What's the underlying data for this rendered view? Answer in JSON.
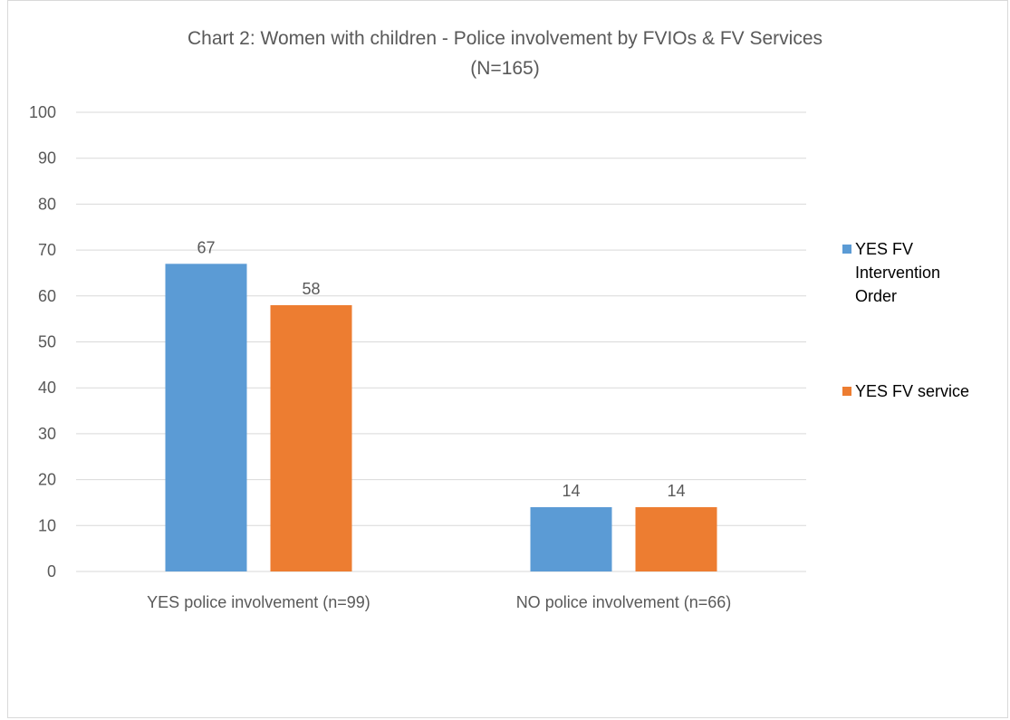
{
  "chart_data": {
    "type": "bar",
    "title": "Chart 2: Women with children - Police involvement by FVIOs & FV Services",
    "subtitle": "(N=165)",
    "categories": [
      "YES police involvement (n=99)",
      "NO police involvement (n=66)"
    ],
    "series": [
      {
        "name": "YES FV Intervention Order",
        "values": [
          67,
          14
        ],
        "color": "#5b9bd5"
      },
      {
        "name": "YES FV service",
        "values": [
          58,
          14
        ],
        "color": "#ed7d31"
      }
    ],
    "ylim": [
      0,
      100
    ],
    "yticks": [
      0,
      10,
      20,
      30,
      40,
      50,
      60,
      70,
      80,
      90,
      100
    ],
    "grid": true,
    "legend_position": "right",
    "data_labels": true
  },
  "legend": {
    "item1_lines": [
      "YES FV",
      "Intervention",
      "Order"
    ],
    "item2": "YES FV service"
  },
  "colors": {
    "gridline": "#d9d9d9",
    "text": "#595959"
  }
}
